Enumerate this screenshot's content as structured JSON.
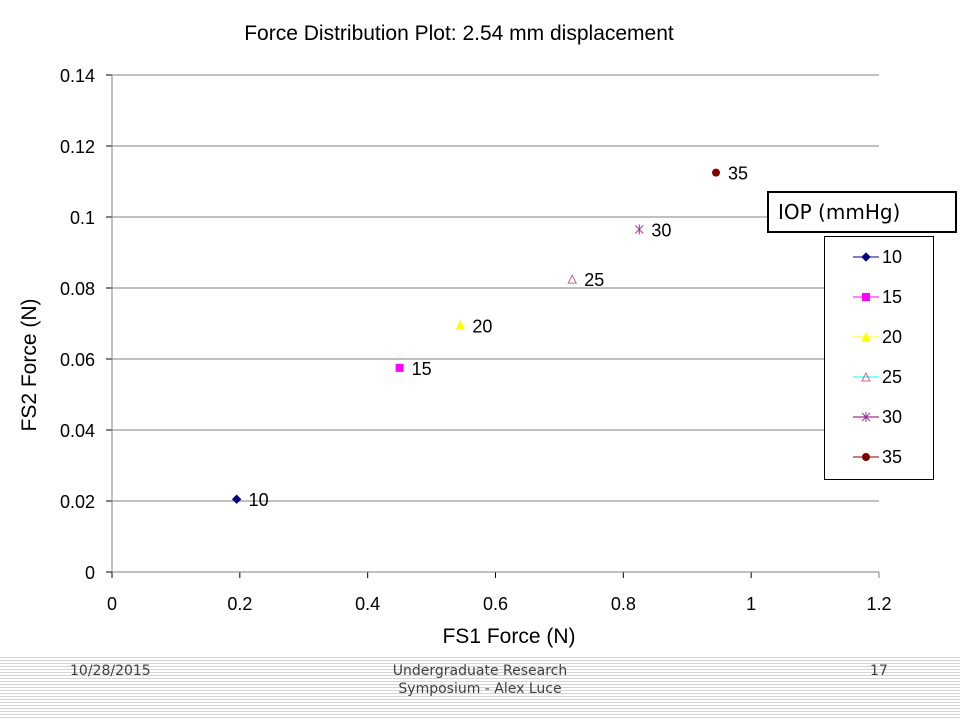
{
  "chart_data": {
    "type": "scatter",
    "title": "Force Distribution Plot: 2.54 mm displacement",
    "xlabel": "FS1 Force (N)",
    "ylabel": "FS2 Force (N)",
    "xlim": [
      0,
      1.2
    ],
    "ylim": [
      0,
      0.14
    ],
    "xticks": [
      "0",
      "0.2",
      "0.4",
      "0.6",
      "0.8",
      "1",
      "1.2"
    ],
    "yticks": [
      "0",
      "0.02",
      "0.04",
      "0.06",
      "0.08",
      "0.1",
      "0.12",
      "0.14"
    ],
    "grid": "horizontal",
    "legend_title": "IOP (mmHg)",
    "legend_position": "right",
    "series": [
      {
        "name": "10",
        "x": [
          0.195
        ],
        "y": [
          0.0205
        ],
        "marker": "diamond",
        "color": "#00007f",
        "label": "10"
      },
      {
        "name": "15",
        "x": [
          0.45
        ],
        "y": [
          0.0575
        ],
        "marker": "square",
        "color": "#ff00ff",
        "label": "15"
      },
      {
        "name": "20",
        "x": [
          0.545
        ],
        "y": [
          0.0695
        ],
        "marker": "triangle",
        "color": "#ffff00",
        "label": "20"
      },
      {
        "name": "25",
        "x": [
          0.72
        ],
        "y": [
          0.0825
        ],
        "marker": "triangle-open",
        "color": "#cc6699",
        "label": "25"
      },
      {
        "name": "30",
        "x": [
          0.825
        ],
        "y": [
          0.0965
        ],
        "marker": "asterisk",
        "color": "#993399",
        "label": "30"
      },
      {
        "name": "35",
        "x": [
          0.945
        ],
        "y": [
          0.1125
        ],
        "marker": "circle",
        "color": "#800000",
        "label": "35"
      }
    ]
  },
  "legend": {
    "title": "IOP (mmHg)",
    "items": [
      {
        "label": "10",
        "marker": "diamond",
        "color": "#00007f",
        "line": "#000080"
      },
      {
        "label": "15",
        "marker": "square",
        "color": "#ff00ff",
        "line": "#ff00ff"
      },
      {
        "label": "20",
        "marker": "triangle",
        "color": "#ffff00",
        "line": "#ffff00"
      },
      {
        "label": "25",
        "marker": "triangle-open",
        "color": "#cc6699",
        "line": "#00ffff"
      },
      {
        "label": "30",
        "marker": "asterisk",
        "color": "#993399",
        "line": "#800080"
      },
      {
        "label": "35",
        "marker": "circle",
        "color": "#800000",
        "line": "#800000"
      }
    ]
  },
  "footer": {
    "date": "10/28/2015",
    "center_line1": "Undergraduate Research",
    "center_line2": "Symposium - Alex Luce",
    "page": "17"
  }
}
